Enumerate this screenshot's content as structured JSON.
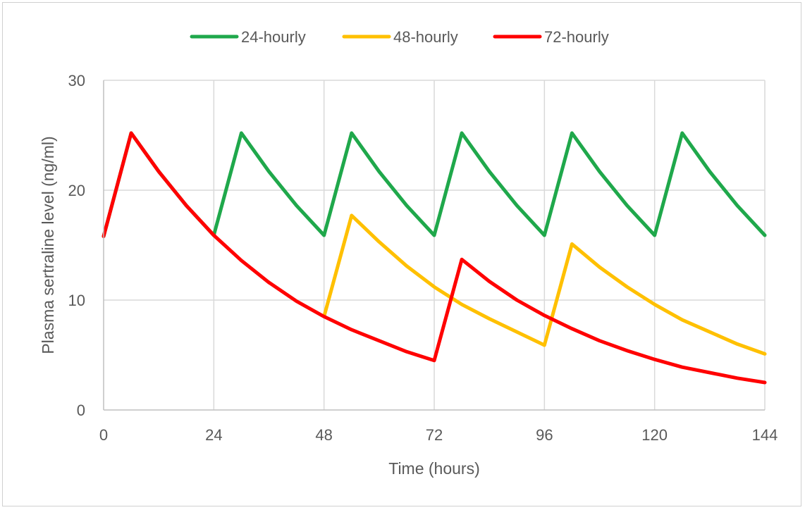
{
  "chart_data": {
    "type": "line",
    "title": "",
    "xlabel": "Time (hours)",
    "ylabel": "Plasma sertraline level (ng/ml)",
    "xlim": [
      0,
      144
    ],
    "ylim": [
      0,
      30
    ],
    "xticks": [
      0,
      24,
      48,
      72,
      96,
      120,
      144
    ],
    "yticks": [
      0,
      10,
      20,
      30
    ],
    "grid": true,
    "legend_position": "top",
    "series": [
      {
        "name": "24-hourly",
        "color": "#1fa84b",
        "x": [
          0,
          6,
          12,
          18,
          24,
          30,
          36,
          42,
          48,
          54,
          60,
          66,
          72,
          78,
          84,
          90,
          96,
          102,
          108,
          114,
          120,
          126,
          132,
          138,
          144
        ],
        "y": [
          15.8,
          25.2,
          21.7,
          18.6,
          15.9,
          25.2,
          21.7,
          18.6,
          15.9,
          25.2,
          21.7,
          18.6,
          15.9,
          25.2,
          21.7,
          18.6,
          15.9,
          25.2,
          21.7,
          18.6,
          15.9,
          25.2,
          21.7,
          18.6,
          15.9
        ]
      },
      {
        "name": "48-hourly",
        "color": "#ffc000",
        "x": [
          48,
          54,
          60,
          66,
          72,
          78,
          84,
          90,
          96,
          102,
          108,
          114,
          120,
          126,
          132,
          138,
          144
        ],
        "y": [
          8.5,
          17.7,
          15.3,
          13.1,
          11.2,
          9.6,
          8.3,
          7.1,
          5.9,
          15.1,
          13.0,
          11.2,
          9.6,
          8.2,
          7.1,
          6.0,
          5.1
        ]
      },
      {
        "name": "72-hourly",
        "color": "#ff0000",
        "x": [
          0,
          6,
          12,
          18,
          24,
          30,
          36,
          42,
          48,
          54,
          60,
          66,
          72,
          78,
          84,
          90,
          96,
          102,
          108,
          114,
          120,
          126,
          132,
          138,
          144
        ],
        "y": [
          15.8,
          25.2,
          21.7,
          18.6,
          15.9,
          13.6,
          11.6,
          9.9,
          8.5,
          7.3,
          6.3,
          5.3,
          4.5,
          13.7,
          11.7,
          10.0,
          8.6,
          7.4,
          6.3,
          5.4,
          4.6,
          3.9,
          3.4,
          2.9,
          2.5
        ]
      }
    ]
  }
}
